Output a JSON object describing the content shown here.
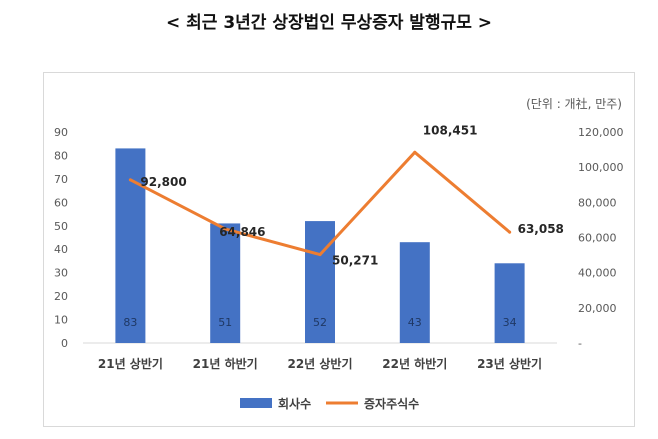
{
  "header": {
    "title": "< 최근 3년간 상장법인 무상증자 발행규모 >"
  },
  "chart_data": {
    "type": "bar",
    "unit_note": "(단위 : 개社, 만주)",
    "categories": [
      "21년 상반기",
      "21년 하반기",
      "22년 상반기",
      "22년 하반기",
      "23년 상반기"
    ],
    "series": [
      {
        "name": "회사수",
        "type": "bar",
        "axis": "left",
        "color": "#4472C4",
        "values": [
          83,
          51,
          52,
          43,
          34
        ],
        "labels": [
          "83",
          "51",
          "52",
          "43",
          "34"
        ]
      },
      {
        "name": "증자주식수",
        "type": "line",
        "axis": "right",
        "color": "#ED7D31",
        "values": [
          92800,
          64846,
          50271,
          108451,
          63058
        ],
        "labels": [
          "92,800",
          "64,846",
          "50,271",
          "108,451",
          "63,058"
        ]
      }
    ],
    "y_left": {
      "min": 0,
      "max": 90,
      "ticks": [
        "0",
        "10",
        "20",
        "30",
        "40",
        "50",
        "60",
        "70",
        "80",
        "90"
      ]
    },
    "y_right": {
      "min": 0,
      "max": 120000,
      "ticks": [
        "-",
        "20,000",
        "40,000",
        "60,000",
        "80,000",
        "100,000",
        "120,000"
      ]
    },
    "legend": "bottom",
    "grid": false
  }
}
